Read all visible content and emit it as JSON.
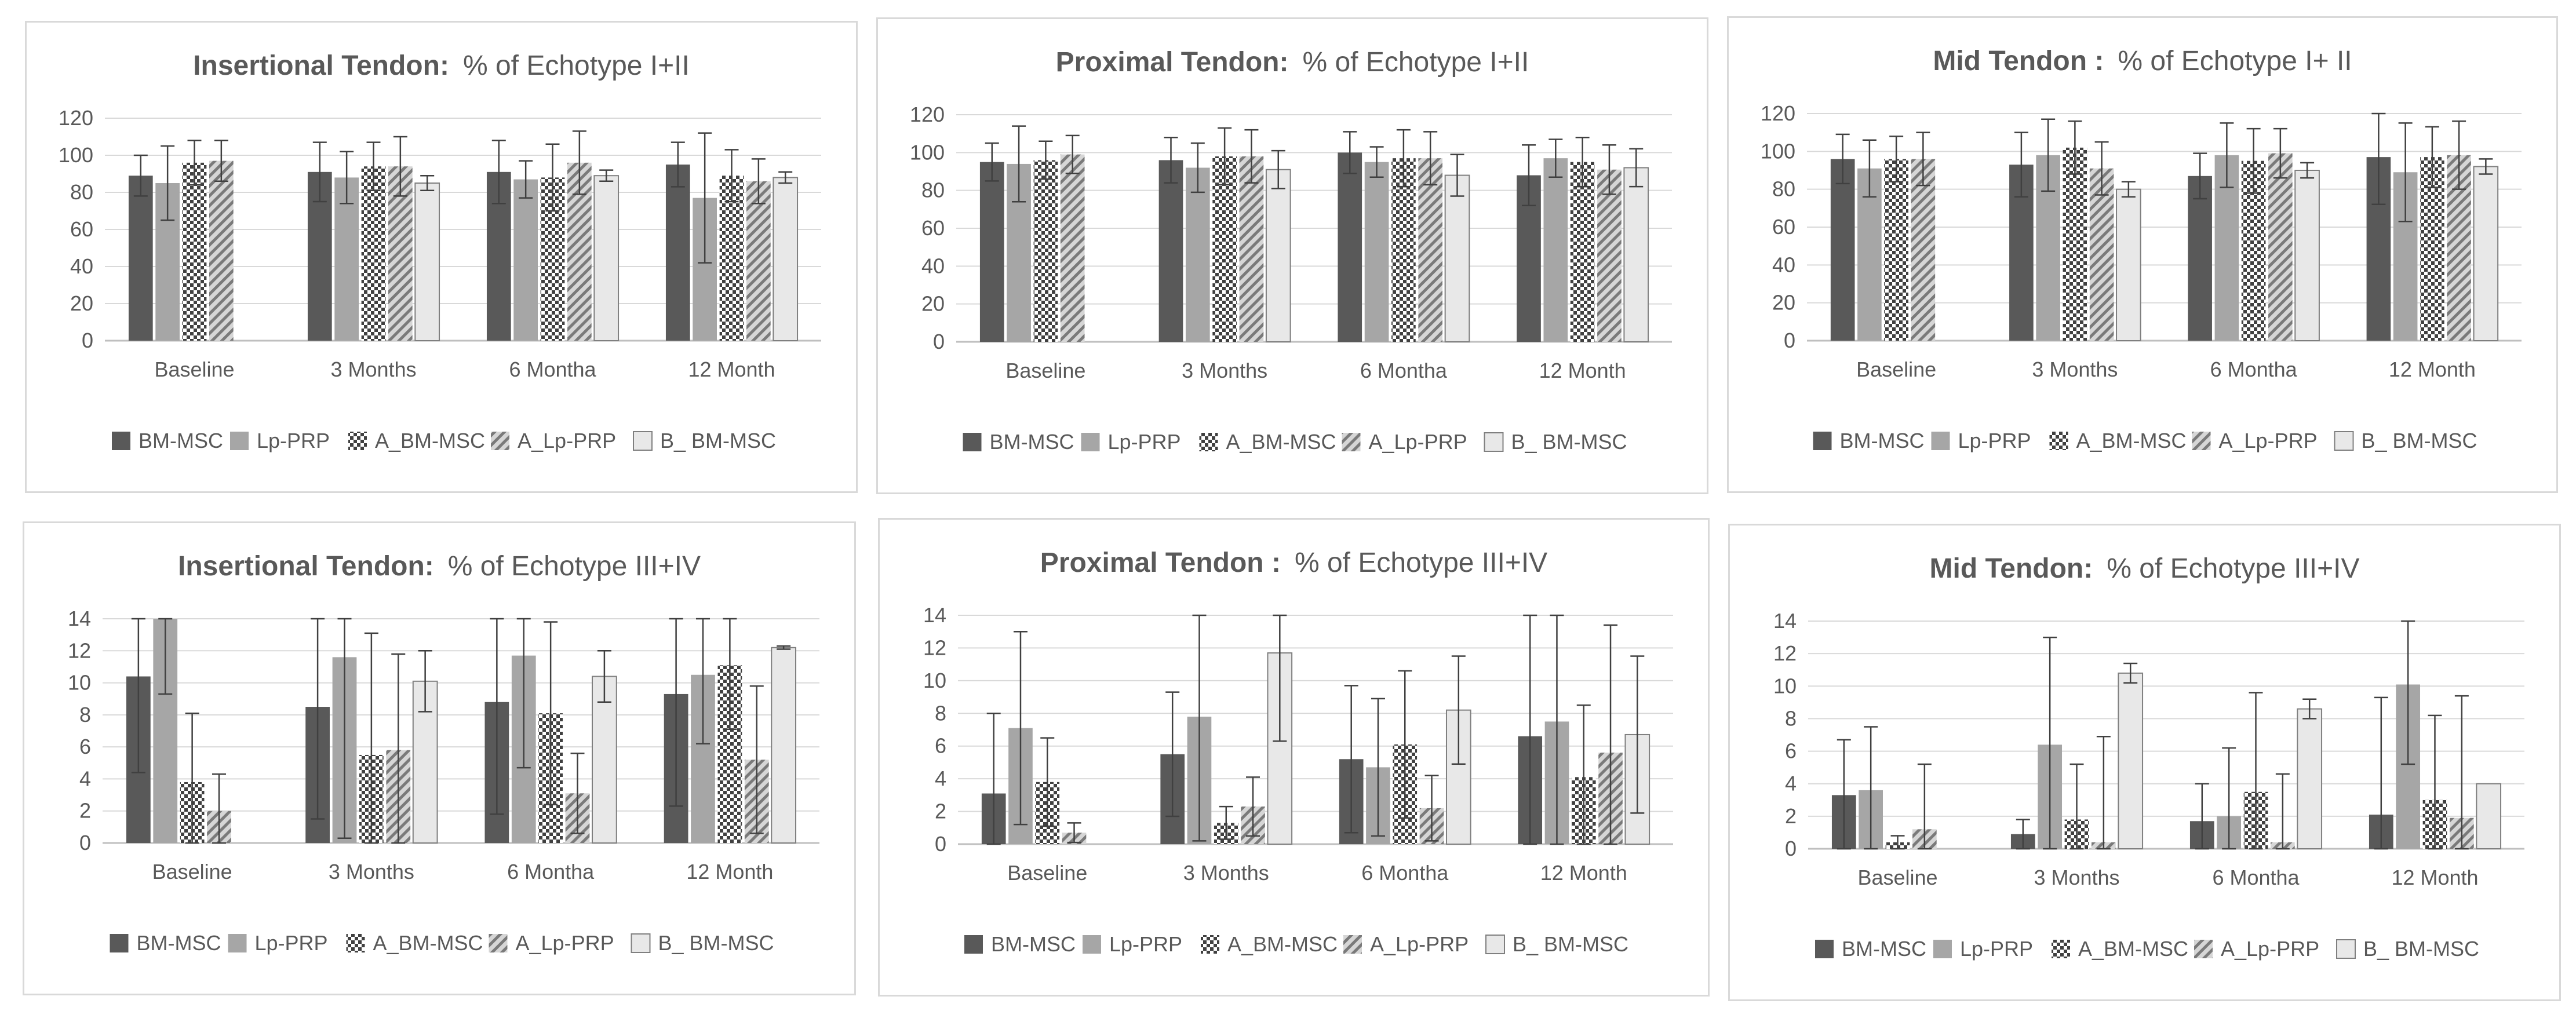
{
  "colors": {
    "BM_MSC": "#595959",
    "Lp_PRP": "#a6a6a6",
    "pattern_dark": "#404040",
    "B_BM_MSC_fill": "#e8e8e8",
    "B_BM_MSC_stroke": "#7f7f7f",
    "gridline": "#d9d9d9",
    "axis": "#bfbfbf",
    "error_bar": "#404040",
    "panel_border": "#d9d9d9"
  },
  "chart_data": [
    {
      "type": "bar",
      "title_bold": "Insertional Tendon:",
      "title_rest": "% of Echotype I+II",
      "categories": [
        "Baseline",
        "3 Months",
        "6 Montha",
        "12 Month"
      ],
      "ylim": [
        0,
        120
      ],
      "yticks": [
        "0",
        "20",
        "40",
        "60",
        "80",
        "100",
        "120"
      ],
      "grid": true,
      "legend_position": "bottom",
      "series": [
        {
          "name": "BM-MSC",
          "values": [
            89,
            91,
            91,
            95
          ],
          "errors": [
            11,
            16,
            17,
            12
          ]
        },
        {
          "name": "Lp-PRP",
          "values": [
            85,
            88,
            87,
            77
          ],
          "errors": [
            20,
            14,
            10,
            35
          ]
        },
        {
          "name": "A_BM-MSC",
          "values": [
            96,
            94,
            88,
            89
          ],
          "errors": [
            12,
            13,
            18,
            14
          ]
        },
        {
          "name": "A_Lp-PRP",
          "values": [
            97,
            94,
            96,
            86
          ],
          "errors": [
            11,
            16,
            17,
            12
          ]
        },
        {
          "name": "B_ BM-MSC",
          "values": [
            0,
            85,
            89,
            88
          ],
          "errors": [
            0,
            4,
            3,
            3
          ]
        }
      ]
    },
    {
      "type": "bar",
      "title_bold": "Proximal Tendon:",
      "title_rest": "% of Echotype I+II",
      "categories": [
        "Baseline",
        "3 Months",
        "6 Montha",
        "12 Month"
      ],
      "ylim": [
        0,
        120
      ],
      "yticks": [
        "0",
        "20",
        "40",
        "60",
        "80",
        "100",
        "120"
      ],
      "grid": true,
      "legend_position": "bottom",
      "series": [
        {
          "name": "BM-MSC",
          "values": [
            95,
            96,
            100,
            88
          ],
          "errors": [
            10,
            12,
            11,
            16
          ]
        },
        {
          "name": "Lp-PRP",
          "values": [
            94,
            92,
            95,
            97
          ],
          "errors": [
            20,
            13,
            8,
            10
          ]
        },
        {
          "name": "A_BM-MSC",
          "values": [
            96,
            98,
            97,
            95
          ],
          "errors": [
            10,
            15,
            15,
            13
          ]
        },
        {
          "name": "A_Lp-PRP",
          "values": [
            99,
            98,
            97,
            91
          ],
          "errors": [
            10,
            14,
            14,
            13
          ]
        },
        {
          "name": "B_ BM-MSC",
          "values": [
            0,
            91,
            88,
            92
          ],
          "errors": [
            0,
            10,
            11,
            10
          ]
        }
      ]
    },
    {
      "type": "bar",
      "title_bold": "Mid Tendon :",
      "title_rest": "% of Echotype I+ II",
      "categories": [
        "Baseline",
        "3 Months",
        "6 Montha",
        "12 Month"
      ],
      "ylim": [
        0,
        120
      ],
      "yticks": [
        "0",
        "20",
        "40",
        "60",
        "80",
        "100",
        "120"
      ],
      "grid": true,
      "legend_position": "bottom",
      "series": [
        {
          "name": "BM-MSC",
          "values": [
            96,
            93,
            87,
            97
          ],
          "errors": [
            13,
            17,
            12,
            25
          ]
        },
        {
          "name": "Lp-PRP",
          "values": [
            91,
            98,
            98,
            89
          ],
          "errors": [
            15,
            19,
            17,
            26
          ]
        },
        {
          "name": "A_BM-MSC",
          "values": [
            96,
            102,
            95,
            97
          ],
          "errors": [
            12,
            14,
            17,
            16
          ]
        },
        {
          "name": "A_Lp-PRP",
          "values": [
            96,
            91,
            99,
            98
          ],
          "errors": [
            14,
            14,
            13,
            18
          ]
        },
        {
          "name": "B_ BM-MSC",
          "values": [
            0,
            80,
            90,
            92
          ],
          "errors": [
            0,
            4,
            4,
            4
          ]
        }
      ]
    },
    {
      "type": "bar",
      "title_bold": "Insertional Tendon:",
      "title_rest": "% of Echotype III+IV",
      "categories": [
        "Baseline",
        "3 Months",
        "6 Montha",
        "12 Month"
      ],
      "ylim": [
        0,
        14
      ],
      "yticks": [
        "0",
        "2",
        "4",
        "6",
        "8",
        "10",
        "12",
        "14"
      ],
      "grid": true,
      "legend_position": "bottom",
      "series": [
        {
          "name": "BM-MSC",
          "values": [
            10.4,
            8.5,
            8.8,
            9.3
          ],
          "errors": [
            6,
            7,
            7,
            7
          ]
        },
        {
          "name": "Lp-PRP",
          "values": [
            14.3,
            11.6,
            11.7,
            10.5
          ],
          "errors": [
            5,
            11.3,
            7,
            4.3
          ]
        },
        {
          "name": "A_BM-MSC",
          "values": [
            3.8,
            5.5,
            8.1,
            11.1
          ],
          "errors": [
            4.3,
            7.6,
            5.7,
            4
          ]
        },
        {
          "name": "A_Lp-PRP",
          "values": [
            2,
            5.8,
            3.1,
            5.2
          ],
          "errors": [
            2.3,
            6,
            2.5,
            4.6
          ]
        },
        {
          "name": "B_ BM-MSC",
          "values": [
            0,
            10.1,
            10.4,
            12.2
          ],
          "errors": [
            0,
            1.9,
            1.6,
            0.1
          ]
        }
      ]
    },
    {
      "type": "bar",
      "title_bold": "Proximal Tendon :",
      "title_rest": "% of Echotype III+IV",
      "categories": [
        "Baseline",
        "3 Months",
        "6 Montha",
        "12 Month"
      ],
      "ylim": [
        0,
        14
      ],
      "yticks": [
        "0",
        "2",
        "4",
        "6",
        "8",
        "10",
        "12",
        "14"
      ],
      "grid": true,
      "legend_position": "bottom",
      "series": [
        {
          "name": "BM-MSC",
          "values": [
            3.1,
            5.5,
            5.2,
            6.6
          ],
          "errors": [
            4.9,
            3.8,
            4.5,
            7.7
          ]
        },
        {
          "name": "Lp-PRP",
          "values": [
            7.1,
            7.8,
            4.7,
            7.5
          ],
          "errors": [
            5.9,
            7.6,
            4.2,
            7.6
          ]
        },
        {
          "name": "A_BM-MSC",
          "values": [
            3.8,
            1.3,
            6.1,
            4.1
          ],
          "errors": [
            2.7,
            1,
            4.5,
            4.4
          ]
        },
        {
          "name": "A_Lp-PRP",
          "values": [
            0.7,
            2.3,
            2.2,
            5.6
          ],
          "errors": [
            0.6,
            1.8,
            2,
            7.8
          ]
        },
        {
          "name": "B_ BM-MSC",
          "values": [
            0,
            11.7,
            8.2,
            6.7
          ],
          "errors": [
            0,
            5.4,
            3.3,
            4.8
          ]
        }
      ]
    },
    {
      "type": "bar",
      "title_bold": "Mid Tendon:",
      "title_rest": "% of Echotype III+IV",
      "categories": [
        "Baseline",
        "3 Months",
        "6 Montha",
        "12 Month"
      ],
      "ylim": [
        0,
        14
      ],
      "yticks": [
        "0",
        "2",
        "4",
        "6",
        "8",
        "10",
        "12",
        "14"
      ],
      "grid": true,
      "legend_position": "bottom",
      "series": [
        {
          "name": "BM-MSC",
          "values": [
            3.3,
            0.9,
            1.7,
            2.1
          ],
          "errors": [
            3.4,
            0.9,
            2.3,
            7.2
          ]
        },
        {
          "name": "Lp-PRP",
          "values": [
            3.6,
            6.4,
            2,
            10.1
          ],
          "errors": [
            3.9,
            6.6,
            4.2,
            4.9
          ]
        },
        {
          "name": "A_BM-MSC",
          "values": [
            0.4,
            1.8,
            3.5,
            3
          ],
          "errors": [
            0.4,
            3.4,
            6.1,
            5.2
          ]
        },
        {
          "name": "A_Lp-PRP",
          "values": [
            1.2,
            0.4,
            0.4,
            1.9
          ],
          "errors": [
            4,
            6.5,
            4.2,
            7.5
          ]
        },
        {
          "name": "B_ BM-MSC",
          "values": [
            0,
            10.8,
            8.6,
            4
          ],
          "errors": [
            0,
            0.6,
            0.6,
            0
          ]
        }
      ]
    }
  ]
}
